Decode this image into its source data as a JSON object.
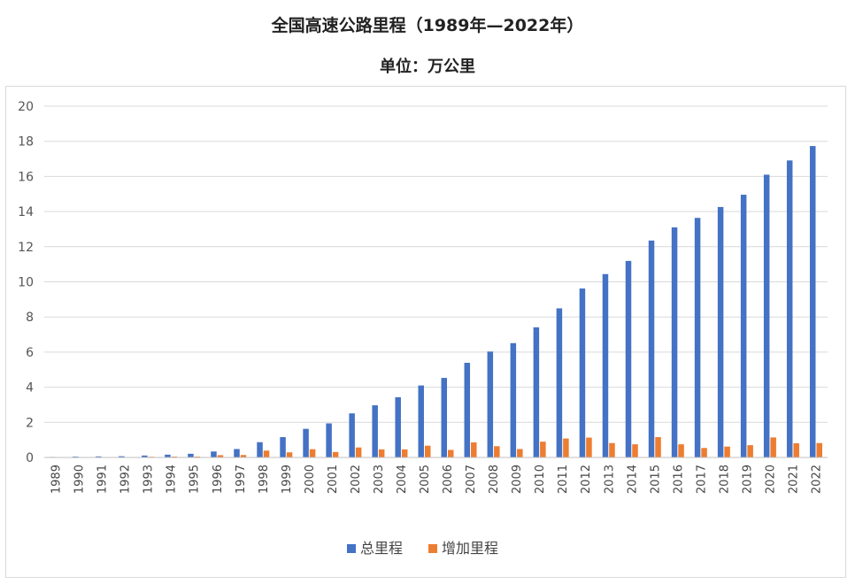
{
  "chart_data": {
    "type": "bar",
    "title": "全国高速公路里程（1989年—2022年）",
    "subtitle": "单位：万公里",
    "categories": [
      "1989",
      "1990",
      "1991",
      "1992",
      "1993",
      "1994",
      "1995",
      "1996",
      "1997",
      "1998",
      "1999",
      "2000",
      "2001",
      "2002",
      "2003",
      "2004",
      "2005",
      "2006",
      "2007",
      "2008",
      "2009",
      "2010",
      "2011",
      "2012",
      "2013",
      "2014",
      "2015",
      "2016",
      "2017",
      "2018",
      "2019",
      "2020",
      "2021",
      "2022"
    ],
    "series": [
      {
        "name": "总里程",
        "color": "#4472C4",
        "values": [
          0.03,
          0.05,
          0.06,
          0.07,
          0.11,
          0.16,
          0.21,
          0.34,
          0.48,
          0.87,
          1.16,
          1.63,
          1.94,
          2.51,
          2.97,
          3.43,
          4.1,
          4.53,
          5.39,
          6.03,
          6.51,
          7.41,
          8.49,
          9.62,
          10.44,
          11.19,
          12.35,
          13.1,
          13.64,
          14.26,
          14.96,
          16.1,
          16.91,
          17.73
        ]
      },
      {
        "name": "增加里程",
        "color": "#ED7D31",
        "values": [
          0.01,
          0.02,
          0.01,
          0.01,
          0.04,
          0.05,
          0.05,
          0.13,
          0.14,
          0.39,
          0.29,
          0.47,
          0.31,
          0.57,
          0.46,
          0.46,
          0.67,
          0.43,
          0.86,
          0.64,
          0.48,
          0.9,
          1.08,
          1.13,
          0.82,
          0.75,
          1.16,
          0.75,
          0.54,
          0.62,
          0.7,
          1.14,
          0.81,
          0.82
        ]
      }
    ],
    "ylim": [
      0,
      20
    ],
    "yticks": [
      0,
      2,
      4,
      6,
      8,
      10,
      12,
      14,
      16,
      18,
      20
    ],
    "grid": true,
    "legend_position": "bottom"
  }
}
